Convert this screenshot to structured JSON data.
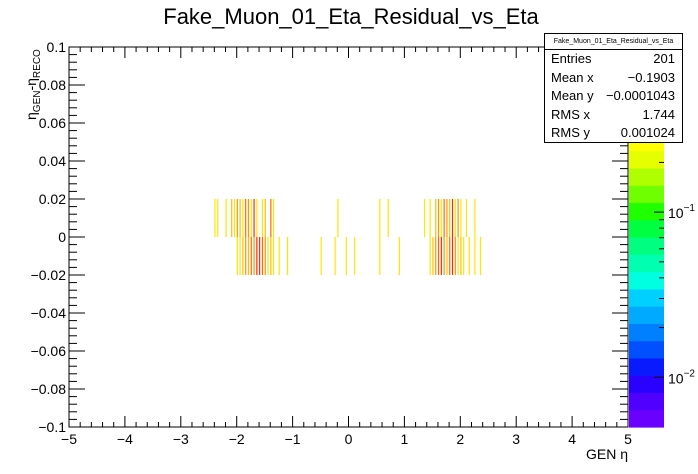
{
  "chart_data": {
    "type": "heatmap",
    "title": "Fake_Muon_01_Eta_Residual_vs_Eta",
    "xlabel": "GEN η",
    "ylabel_main": "η",
    "ylabel_sub1": "GEN",
    "ylabel_mid": "-η",
    "ylabel_sub2": "RECO",
    "xlim": [
      -5,
      5
    ],
    "ylim": [
      -0.1,
      0.1
    ],
    "x_ticks": [
      "−5",
      "−4",
      "−3",
      "−2",
      "−1",
      "0",
      "1",
      "2",
      "3",
      "4",
      "5"
    ],
    "y_ticks": [
      "−0.1",
      "−0.08",
      "−0.06",
      "−0.04",
      "−0.02",
      "0",
      "0.02",
      "0.04",
      "0.06",
      "0.08",
      "0.1"
    ],
    "y_bin_rows": [
      {
        "y_low": 0.0,
        "y_high": 0.02
      },
      {
        "y_low": -0.02,
        "y_high": 0.0
      }
    ],
    "bin_width_x": 0.05,
    "cells": [
      [
        0,
        -2.4,
        0.3
      ],
      [
        0,
        -2.35,
        0.2
      ],
      [
        0,
        -2.2,
        0.3
      ],
      [
        0,
        -2.1,
        0.5
      ],
      [
        0,
        -2.05,
        0.4
      ],
      [
        0,
        -2.0,
        0.6
      ],
      [
        0,
        -1.95,
        0.5
      ],
      [
        0,
        -1.9,
        0.2
      ],
      [
        0,
        -1.85,
        0.8
      ],
      [
        0,
        -1.8,
        0.7
      ],
      [
        0,
        -1.75,
        0.4
      ],
      [
        0,
        -1.7,
        0.9
      ],
      [
        0,
        -1.65,
        0.3
      ],
      [
        0,
        -1.55,
        0.3
      ],
      [
        0,
        -1.5,
        0.5
      ],
      [
        0,
        -1.4,
        0.8
      ],
      [
        0,
        -1.35,
        0.4
      ],
      [
        0,
        -0.2,
        0.3
      ],
      [
        0,
        0.55,
        0.3
      ],
      [
        0,
        0.7,
        0.3
      ],
      [
        0,
        1.35,
        0.3
      ],
      [
        0,
        1.45,
        0.4
      ],
      [
        0,
        1.55,
        0.5
      ],
      [
        0,
        1.6,
        0.6
      ],
      [
        0,
        1.65,
        0.4
      ],
      [
        0,
        1.7,
        0.8
      ],
      [
        0,
        1.75,
        0.7
      ],
      [
        0,
        1.8,
        0.5
      ],
      [
        0,
        1.85,
        0.9
      ],
      [
        0,
        1.9,
        0.4
      ],
      [
        0,
        1.95,
        0.6
      ],
      [
        0,
        2.0,
        0.3
      ],
      [
        0,
        2.1,
        0.3
      ],
      [
        0,
        2.25,
        0.3
      ],
      [
        1,
        -2.0,
        0.3
      ],
      [
        1,
        -1.95,
        0.4
      ],
      [
        1,
        -1.9,
        0.5
      ],
      [
        1,
        -1.85,
        0.6
      ],
      [
        1,
        -1.8,
        0.5
      ],
      [
        1,
        -1.75,
        0.8
      ],
      [
        1,
        -1.7,
        0.7
      ],
      [
        1,
        -1.65,
        0.9
      ],
      [
        1,
        -1.6,
        1.0
      ],
      [
        1,
        -1.55,
        0.8
      ],
      [
        1,
        -1.5,
        0.6
      ],
      [
        1,
        -1.45,
        0.4
      ],
      [
        1,
        -1.4,
        0.5
      ],
      [
        1,
        -1.35,
        0.3
      ],
      [
        1,
        -1.25,
        0.3
      ],
      [
        1,
        -1.1,
        0.3
      ],
      [
        1,
        -0.5,
        0.3
      ],
      [
        1,
        -0.25,
        0.3
      ],
      [
        1,
        -0.05,
        0.3
      ],
      [
        1,
        0.1,
        0.3
      ],
      [
        1,
        0.55,
        0.3
      ],
      [
        1,
        0.9,
        0.3
      ],
      [
        1,
        1.45,
        0.3
      ],
      [
        1,
        1.5,
        0.5
      ],
      [
        1,
        1.55,
        0.6
      ],
      [
        1,
        1.6,
        0.8
      ],
      [
        1,
        1.65,
        0.9
      ],
      [
        1,
        1.7,
        0.7
      ],
      [
        1,
        1.75,
        0.5
      ],
      [
        1,
        1.8,
        0.8
      ],
      [
        1,
        1.85,
        1.0
      ],
      [
        1,
        1.9,
        0.6
      ],
      [
        1,
        1.95,
        0.4
      ],
      [
        1,
        2.0,
        0.5
      ],
      [
        1,
        2.05,
        0.3
      ],
      [
        1,
        2.15,
        0.4
      ],
      [
        1,
        2.25,
        0.3
      ],
      [
        1,
        2.35,
        0.3
      ]
    ],
    "colorbar": {
      "scale": "log",
      "tick_labels": [
        {
          "base": "10",
          "exp": "−1",
          "value": 0.1
        },
        {
          "base": "10",
          "exp": "−2",
          "value": 0.01
        }
      ],
      "value_range": [
        0.005,
        1.0
      ]
    },
    "grid": false,
    "stats_box_position": "top-right"
  },
  "stats": {
    "title": "Fake_Muon_01_Eta_Residual_vs_Eta",
    "entries_label": "Entries",
    "entries_value": "201",
    "meanx_label": "Mean x",
    "meanx_value": "−0.1903",
    "meany_label": "Mean y",
    "meany_value": "−0.0001043",
    "rmsx_label": "RMS x",
    "rmsx_value": "1.744",
    "rmsy_label": "RMS y",
    "rmsy_value": "0.001024"
  }
}
